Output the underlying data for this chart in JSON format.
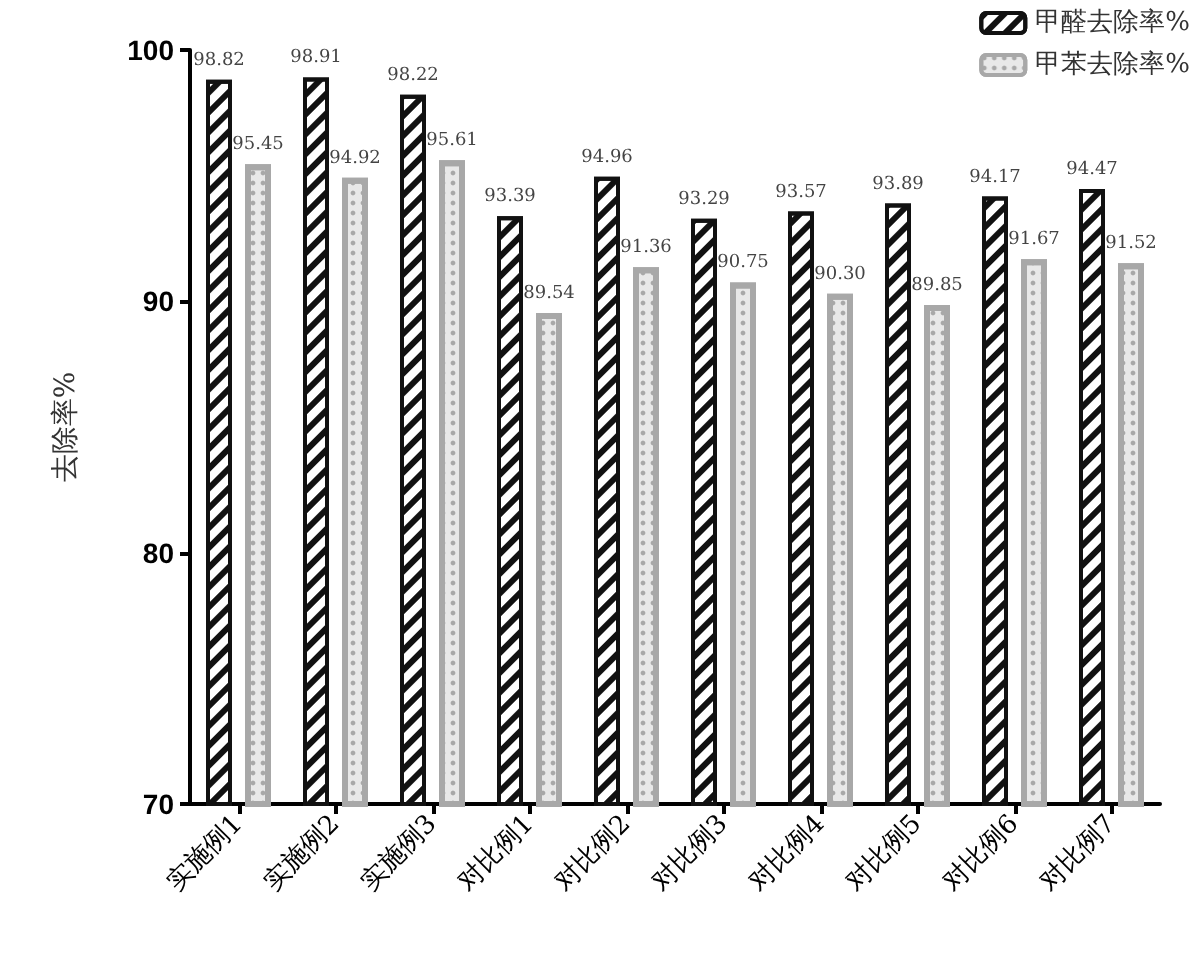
{
  "chart_data": {
    "type": "bar",
    "ylabel": "去除率%",
    "categories": [
      "实施例1",
      "实施例2",
      "实施例3",
      "对比例1",
      "对比例2",
      "对比例3",
      "对比例4",
      "对比例5",
      "对比例6",
      "对比例7"
    ],
    "series": [
      {
        "name": "甲醛去除率%",
        "color": "#111111",
        "values": [
          98.82,
          98.91,
          98.22,
          93.39,
          94.96,
          93.29,
          93.57,
          93.89,
          94.17,
          94.47
        ],
        "value_labels": [
          "98.82",
          "98.91",
          "98.22",
          "93.39",
          "94.96",
          "93.29",
          "93.57",
          "93.89",
          "94.17",
          "94.47"
        ]
      },
      {
        "name": "甲苯去除率%",
        "color": "#a8a8a8",
        "values": [
          95.45,
          94.92,
          95.61,
          89.54,
          91.36,
          90.75,
          90.3,
          89.85,
          91.67,
          91.52
        ],
        "value_labels": [
          "95.45",
          "94.92",
          "95.61",
          "89.54",
          "91.36",
          "90.75",
          "90.30",
          "89.85",
          "91.67",
          "91.52"
        ]
      }
    ],
    "ylim": [
      70,
      100
    ],
    "yticks": [
      70,
      80,
      90,
      100
    ],
    "grid": false,
    "legend": "top right"
  }
}
